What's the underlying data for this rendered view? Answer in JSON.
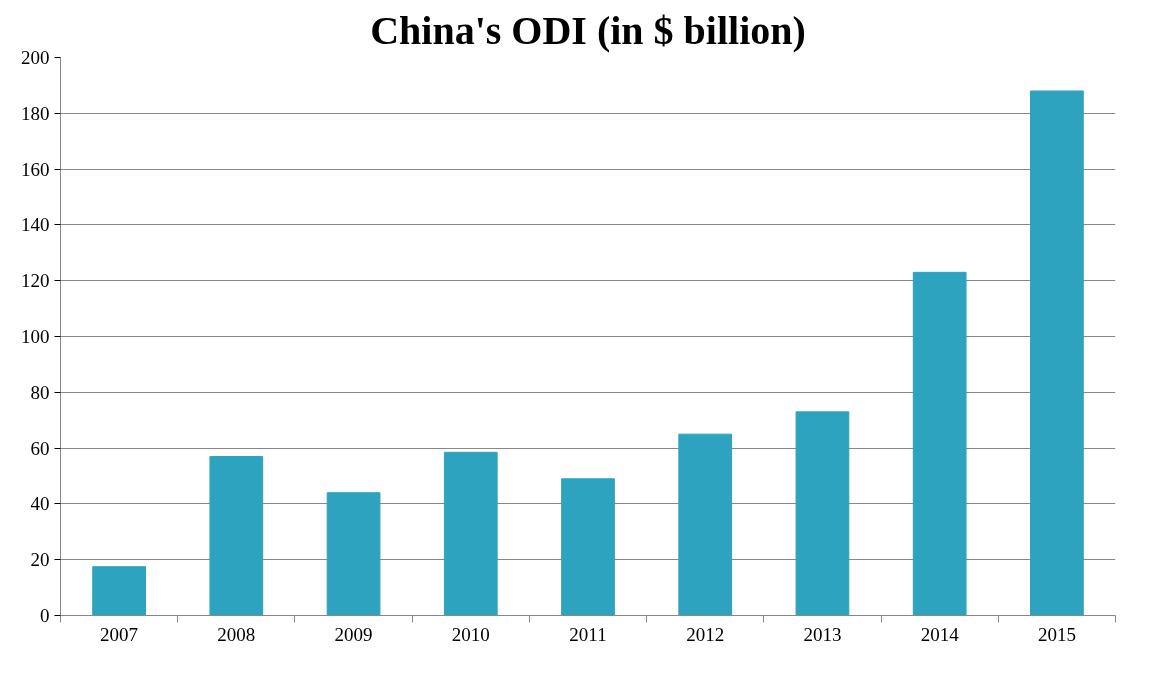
{
  "chart_data": {
    "type": "bar",
    "title": "China's ODI (in $ billion)",
    "categories": [
      "2007",
      "2008",
      "2009",
      "2010",
      "2011",
      "2012",
      "2013",
      "2014",
      "2015"
    ],
    "values": [
      17.5,
      57,
      44,
      58.5,
      49,
      65,
      73,
      123,
      188
    ],
    "color": "#2ea3bf",
    "ylim": [
      0,
      200
    ],
    "yticks": [
      0,
      20,
      40,
      60,
      80,
      100,
      120,
      140,
      160,
      180,
      200
    ],
    "grid": "y"
  }
}
